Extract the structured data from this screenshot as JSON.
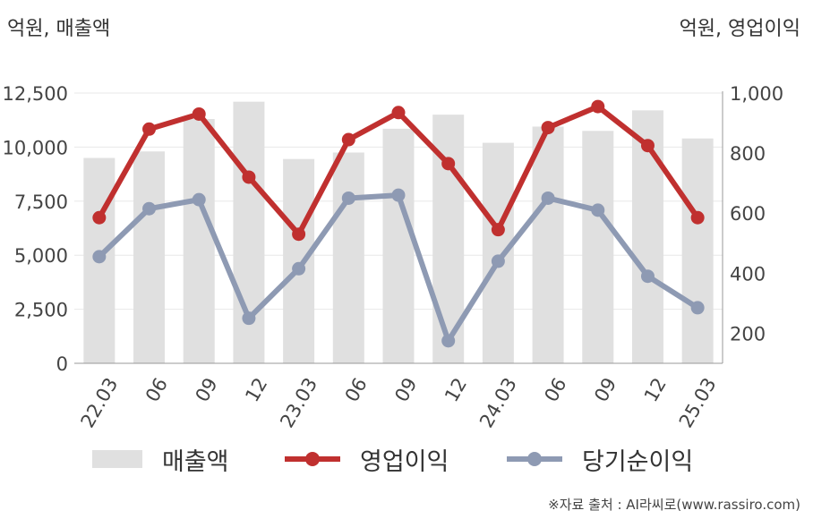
{
  "units": {
    "left": "억원, 매출액",
    "right": "억원, 영업이익"
  },
  "source": "※자료 출처 : AI라씨로(www.rassiro.com)",
  "chart_data": {
    "type": "bar+line",
    "categories": [
      "22.03",
      "06",
      "09",
      "12",
      "23.03",
      "06",
      "09",
      "12",
      "24.03",
      "06",
      "09",
      "12",
      "25.03"
    ],
    "left_axis": {
      "ylim": [
        0,
        12500
      ],
      "ticks": [
        "0",
        "2,500",
        "5,000",
        "7,500",
        "10,000",
        "12,500"
      ]
    },
    "right_axis": {
      "ylim": [
        100,
        1000
      ],
      "ticks": [
        "200",
        "400",
        "600",
        "800",
        "1,000"
      ]
    },
    "series": [
      {
        "name": "매출액",
        "type": "bar",
        "axis": "left",
        "color": "#e0e0e0",
        "values": [
          9500,
          9800,
          11300,
          12100,
          9450,
          9750,
          10850,
          11500,
          10200,
          10950,
          10750,
          11700,
          10400
        ]
      },
      {
        "name": "영업이익",
        "type": "line",
        "axis": "right",
        "color": "#c0302f",
        "values": [
          585,
          880,
          930,
          720,
          530,
          845,
          935,
          765,
          545,
          885,
          955,
          825,
          585
        ]
      },
      {
        "name": "당기순이익",
        "type": "line",
        "axis": "right",
        "color": "#8e9ab3",
        "values": [
          455,
          615,
          645,
          250,
          415,
          650,
          660,
          175,
          440,
          650,
          610,
          390,
          285
        ]
      }
    ]
  }
}
